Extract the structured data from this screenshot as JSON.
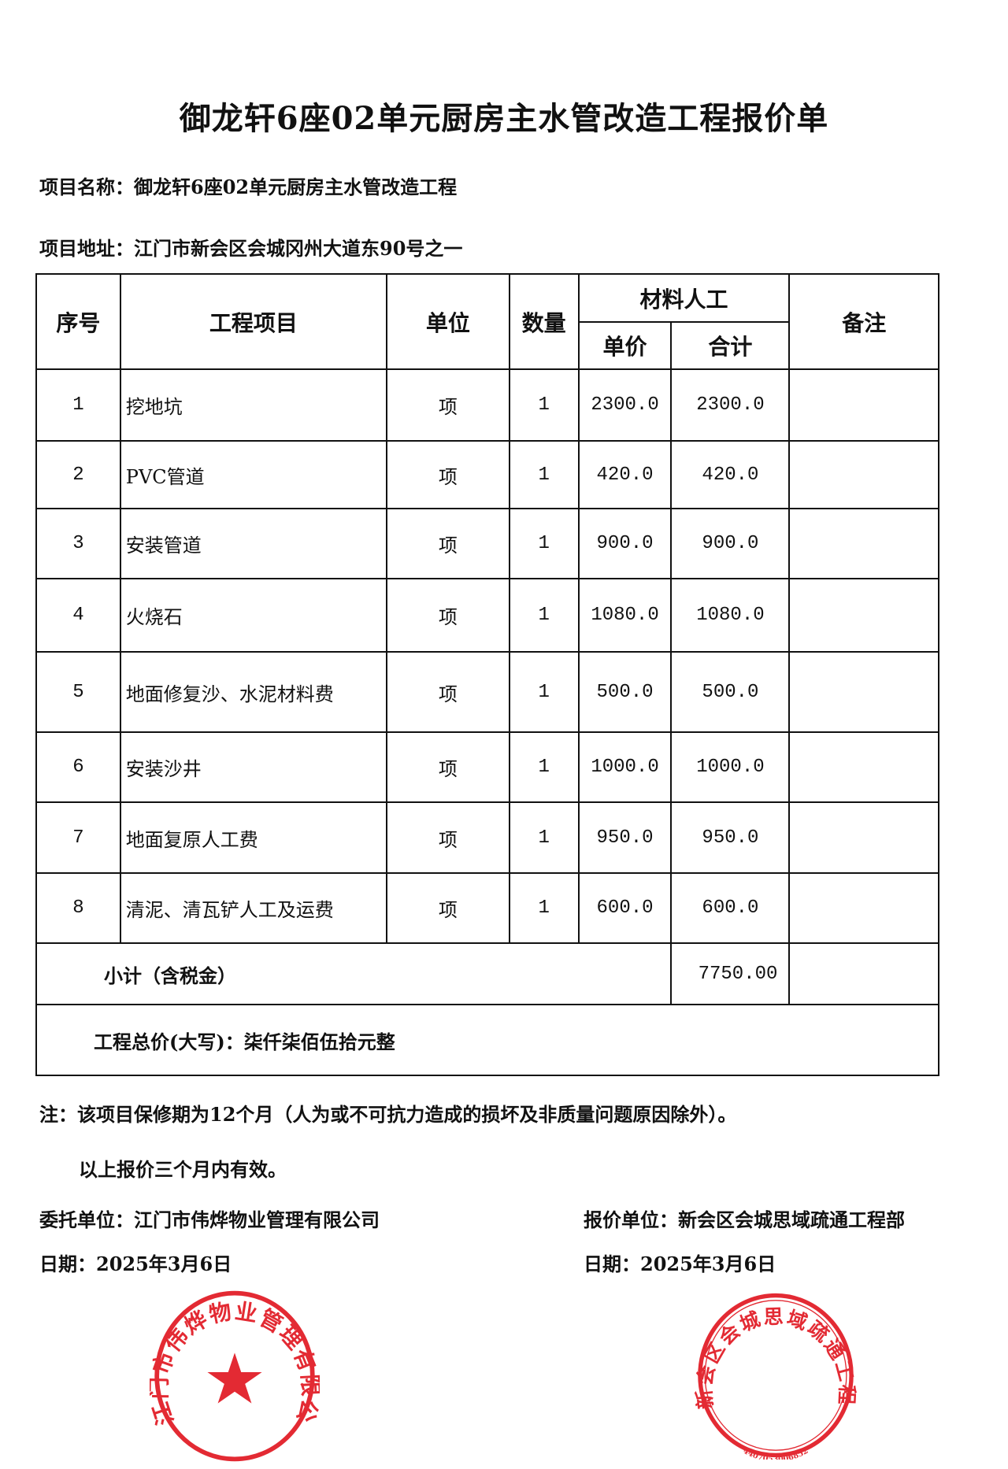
{
  "title": "御龙轩6座02单元厨房主水管改造工程报价单",
  "project_name_label": "项目名称：",
  "project_name": "御龙轩6座02单元厨房主水管改造工程",
  "project_address_label": "项目地址：",
  "project_address": "江门市新会区会城冈州大道东90号之一",
  "table": {
    "headers": {
      "no": "序号",
      "item": "工程项目",
      "unit": "单位",
      "qty": "数量",
      "group": "材料人工",
      "unit_price": "单价",
      "total": "合计",
      "remark": "备注"
    },
    "rows": [
      {
        "no": "1",
        "item": "挖地坑",
        "unit": "项",
        "qty": "1",
        "unit_price": "2300.0",
        "total": "2300.0",
        "remark": ""
      },
      {
        "no": "2",
        "item": "PVC管道",
        "unit": "项",
        "qty": "1",
        "unit_price": "420.0",
        "total": "420.0",
        "remark": ""
      },
      {
        "no": "3",
        "item": "安装管道",
        "unit": "项",
        "qty": "1",
        "unit_price": "900.0",
        "total": "900.0",
        "remark": ""
      },
      {
        "no": "4",
        "item": "火烧石",
        "unit": "项",
        "qty": "1",
        "unit_price": "1080.0",
        "total": "1080.0",
        "remark": ""
      },
      {
        "no": "5",
        "item": "地面修复沙、水泥材料费",
        "unit": "项",
        "qty": "1",
        "unit_price": "500.0",
        "total": "500.0",
        "remark": ""
      },
      {
        "no": "6",
        "item": "安装沙井",
        "unit": "项",
        "qty": "1",
        "unit_price": "1000.0",
        "total": "1000.0",
        "remark": ""
      },
      {
        "no": "7",
        "item": "地面复原人工费",
        "unit": "项",
        "qty": "1",
        "unit_price": "950.0",
        "total": "950.0",
        "remark": ""
      },
      {
        "no": "8",
        "item": "清泥、清瓦铲人工及运费",
        "unit": "项",
        "qty": "1",
        "unit_price": "600.0",
        "total": "600.0",
        "remark": ""
      }
    ],
    "subtotal_label": "小计（含税金）",
    "subtotal": "7750.00",
    "total_words": "工程总价(大写)：柒仟柒佰伍拾元整"
  },
  "note": "注：该项目保修期为12个月（人为或不可抗力造成的损坏及非质量问题原因除外）。",
  "validity": "以上报价三个月内有效。",
  "client_label": "委托单位：",
  "client": "江门市伟烨物业管理有限公司",
  "client_date": "日期：2025年3月6日",
  "quoter_label": "报价单位：",
  "quoter": "新会区会城思域疏通工程部",
  "quoter_date": "日期：2025年3月6日",
  "stamps": {
    "left": "江门市伟烨物业管理有限公司",
    "right": "新会区会城思域疏通工程部",
    "right_code": "4407053006852",
    "color": "#e0141e"
  }
}
